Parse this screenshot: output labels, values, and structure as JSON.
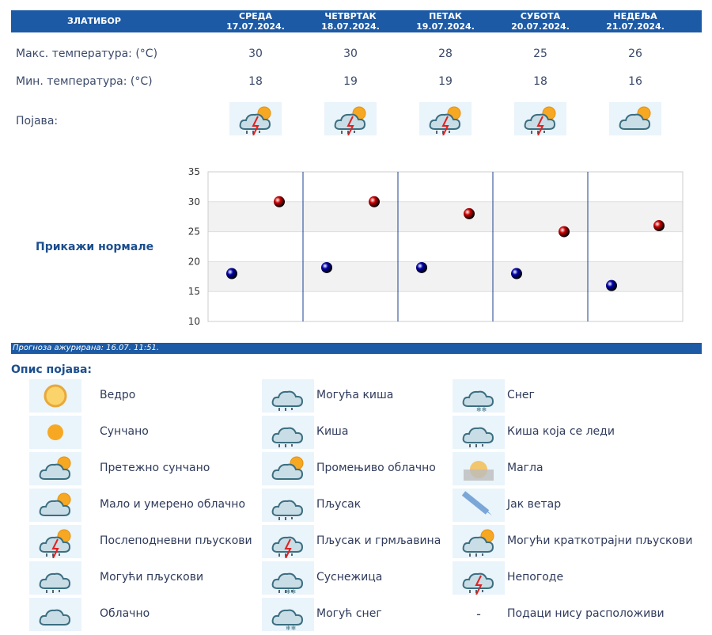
{
  "header": {
    "location": "ЗЛАТИБОР",
    "days": [
      {
        "day": "СРЕДА",
        "date": "17.07.2024.",
        "max": "30",
        "min": "18",
        "icon": "afternoon-showers-icon"
      },
      {
        "day": "ЧЕТВРТАК",
        "date": "18.07.2024.",
        "max": "30",
        "min": "19",
        "icon": "afternoon-showers-icon"
      },
      {
        "day": "ПЕТАК",
        "date": "19.07.2024.",
        "max": "28",
        "min": "19",
        "icon": "afternoon-showers-icon"
      },
      {
        "day": "СУБОТА",
        "date": "20.07.2024.",
        "max": "25",
        "min": "18",
        "icon": "afternoon-showers-icon"
      },
      {
        "day": "НЕДЕЉА",
        "date": "21.07.2024.",
        "max": "26",
        "min": "16",
        "icon": "partly-cloudy-icon"
      }
    ]
  },
  "rows": {
    "max_label": "Макс. температура: (°C)",
    "min_label": "Мин. температура: (°C)",
    "phen_label": "Појава:"
  },
  "show_normals": "Прикажи нормале",
  "chart_data": {
    "type": "scatter",
    "ylim": [
      10,
      35
    ],
    "yticks": [
      "10",
      "15",
      "20",
      "25",
      "30",
      "35"
    ],
    "series": [
      {
        "color": "#cc0000",
        "values": [
          30,
          30,
          28,
          25,
          26
        ]
      },
      {
        "color": "#0000aa",
        "values": [
          18,
          19,
          19,
          18,
          16
        ]
      }
    ],
    "grid": true
  },
  "updated": "Прогноза ажурирана:  16.07. 11:51.",
  "legend_title": "Опис појава:",
  "legend": [
    [
      {
        "icon": "clear-sun-icon",
        "label": "Ведро"
      },
      {
        "icon": "sunny-icon",
        "label": "Сунчано"
      },
      {
        "icon": "mostly-sunny-icon",
        "label": "Претежно сунчано"
      },
      {
        "icon": "partly-cloudy-icon",
        "label": "Мало и умерено облачно"
      },
      {
        "icon": "afternoon-showers-icon",
        "label": "Послеподневни пљускови"
      },
      {
        "icon": "possible-showers-icon",
        "label": "Могући пљускови"
      },
      {
        "icon": "cloudy-icon",
        "label": "Облачно"
      }
    ],
    [
      {
        "icon": "possible-rain-icon",
        "label": "Могућа киша"
      },
      {
        "icon": "rain-icon",
        "label": "Киша"
      },
      {
        "icon": "variable-cloudy-icon",
        "label": "Промењиво облачно"
      },
      {
        "icon": "shower-icon",
        "label": "Пљусак"
      },
      {
        "icon": "thunderstorm-icon",
        "label": "Пљусак и грмљавина"
      },
      {
        "icon": "sleet-icon",
        "label": "Суснежица"
      },
      {
        "icon": "possible-snow-icon",
        "label": "Могућ снег"
      }
    ],
    [
      {
        "icon": "snow-icon",
        "label": "Снег"
      },
      {
        "icon": "freezing-rain-icon",
        "label": "Киша која се леди"
      },
      {
        "icon": "fog-icon",
        "label": "Магла"
      },
      {
        "icon": "strong-wind-icon",
        "label": "Јак ветар"
      },
      {
        "icon": "possible-short-showers-icon",
        "label": "Могући краткотрајни пљускови"
      },
      {
        "icon": "storm-icon",
        "label": "Непогоде"
      },
      {
        "icon": "no-data-icon",
        "label": "Подаци нису расположиви",
        "dash": "-"
      }
    ]
  ]
}
